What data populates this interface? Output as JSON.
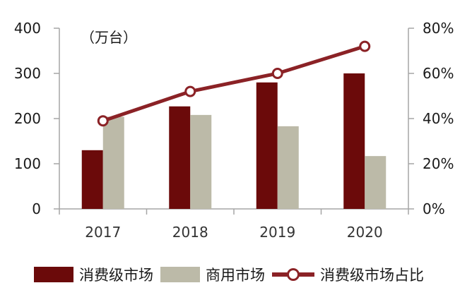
{
  "chart_data": {
    "type": "bar",
    "categories": [
      "2017",
      "2018",
      "2019",
      "2020"
    ],
    "unit_label": "（万台）",
    "series": [
      {
        "name": "消费级市场",
        "kind": "bar",
        "axis": "left",
        "values": [
          130,
          227,
          280,
          300
        ],
        "color": "#6b0a0a"
      },
      {
        "name": "商用市场",
        "kind": "bar",
        "axis": "left",
        "values": [
          204,
          208,
          183,
          117
        ],
        "color": "#bcbaa8"
      },
      {
        "name": "消费级市场占比",
        "kind": "line",
        "axis": "right",
        "values": [
          39,
          52,
          60,
          72
        ],
        "color": "#8b2226"
      }
    ],
    "y_left": {
      "min": 0,
      "max": 400,
      "ticks": [
        "0",
        "100",
        "200",
        "300",
        "400"
      ]
    },
    "y_right": {
      "min": 0,
      "max": 80,
      "ticks": [
        "0%",
        "20%",
        "40%",
        "60%",
        "80%"
      ]
    },
    "legend_position": "bottom",
    "grid": false
  }
}
